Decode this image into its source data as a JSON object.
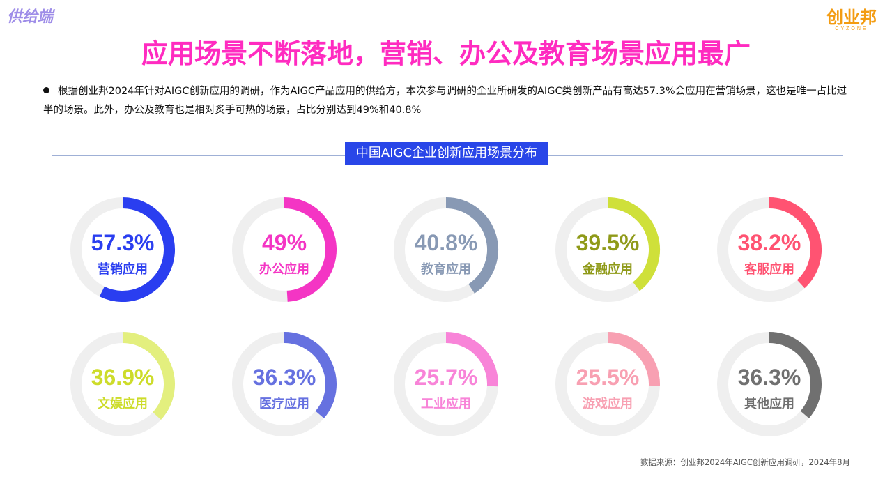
{
  "page": {
    "corner_label": "供给端",
    "logo": {
      "text": "创业邦",
      "sub": "CYZONE"
    },
    "title": "应用场景不断落地，营销、办公及教育场景应用最广",
    "bullet": "根据创业邦2024年针对AIGC创新应用的调研，作为AIGC产品应用的供给方，本次参与调研的企业所研发的AIGC类创新产品有高达57.3%会应用在营销场景，这也是唯一占比过半的场景。此外，办公及教育也是相对炙手可热的场景，占比分别达到49%和40.8%",
    "section_title": "中国AIGC企业创新应用场景分布",
    "source": "数据来源：创业邦2024年AIGC创新应用调研，2024年8月"
  },
  "colors": {
    "track": "#efefef"
  },
  "chart_data": {
    "type": "pie",
    "subtype": "donut-grid",
    "title": "中国AIGC企业创新应用场景分布",
    "unit": "%",
    "items": [
      {
        "category": "营销应用",
        "label": "57.3%",
        "value": 57.3,
        "color": "#2a3ef0"
      },
      {
        "category": "办公应用",
        "label": "49%",
        "value": 49,
        "color": "#f435c4"
      },
      {
        "category": "教育应用",
        "label": "40.8%",
        "value": 40.8,
        "color": "#8899b4"
      },
      {
        "category": "金融应用",
        "label": "39.5%",
        "value": 39.5,
        "color": "#cfe03a",
        "text_color": "#8f9a19"
      },
      {
        "category": "客服应用",
        "label": "38.2%",
        "value": 38.2,
        "color": "#ff5372"
      },
      {
        "category": "文娱应用",
        "label": "36.9%",
        "value": 36.9,
        "color": "#e3ef7e",
        "text_color": "#cddc2a"
      },
      {
        "category": "医疗应用",
        "label": "36.3%",
        "value": 36.3,
        "color": "#6671e0"
      },
      {
        "category": "工业应用",
        "label": "25.7%",
        "value": 25.7,
        "color": "#f884d8"
      },
      {
        "category": "游戏应用",
        "label": "25.5%",
        "value": 25.5,
        "color": "#f8a0b2"
      },
      {
        "category": "其他应用",
        "label": "36.3%",
        "value": 36.3,
        "color": "#707070"
      }
    ]
  }
}
